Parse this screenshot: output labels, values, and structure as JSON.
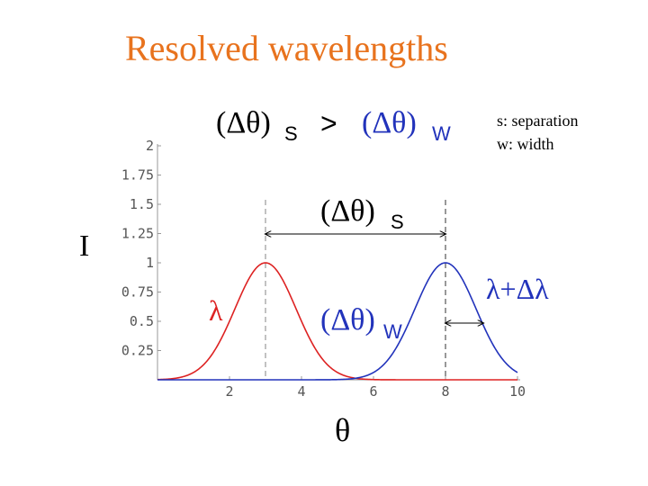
{
  "slide": {
    "title": "Resolved wavelengths",
    "legend": [
      "s: separation",
      "w: width"
    ]
  },
  "colors": {
    "title": "#e8731e",
    "red": "#dd2222",
    "blue": "#2233bb",
    "axis": "#999999"
  },
  "chart_data": {
    "type": "line",
    "xlabel": "θ",
    "ylabel": "I",
    "xlim": [
      0,
      10
    ],
    "ylim": [
      0,
      2
    ],
    "xticks": [
      2,
      4,
      6,
      8
    ],
    "xtick_labels": [
      "2",
      "4",
      "6",
      "8"
    ],
    "xtick_end_label": "10",
    "yticks": [
      0.25,
      0.5,
      0.75,
      1,
      1.25,
      1.5,
      1.75,
      2
    ],
    "ytick_labels": [
      "0.25",
      "0.5",
      "0.75",
      "1",
      "1.25",
      "1.5",
      "1.75",
      "2"
    ],
    "series": [
      {
        "name": "λ",
        "color": "#dd2222",
        "shape": "gaussian",
        "center": 3,
        "amplitude": 1,
        "sigma": 0.85
      },
      {
        "name": "λ+Δλ",
        "color": "#2233bb",
        "shape": "gaussian",
        "center": 8,
        "amplitude": 1,
        "sigma": 0.85
      }
    ],
    "dashed_verticals": [
      3,
      8
    ],
    "annotations": {
      "comparison_left": "(Δθ)",
      "comparison_left_sub": "S",
      "comparison_op": ">",
      "comparison_right": "(Δθ)",
      "comparison_right_sub": "W",
      "separation": "(Δθ)",
      "separation_sub": "S",
      "width": "(Δθ)",
      "width_sub": "W"
    },
    "separation_span": [
      3,
      8
    ],
    "width_span": [
      8,
      9.05
    ],
    "width_level": 0.5
  }
}
